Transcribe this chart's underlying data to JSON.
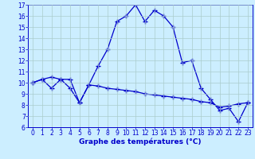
{
  "xlabel": "Graphe des températures (°C)",
  "background_color": "#cceeff",
  "grid_color": "#aacccc",
  "line_color": "#0000cc",
  "xlim": [
    -0.5,
    23.5
  ],
  "ylim": [
    6,
    17
  ],
  "xticks": [
    0,
    1,
    2,
    3,
    4,
    5,
    6,
    7,
    8,
    9,
    10,
    11,
    12,
    13,
    14,
    15,
    16,
    17,
    18,
    19,
    20,
    21,
    22,
    23
  ],
  "yticks": [
    6,
    7,
    8,
    9,
    10,
    11,
    12,
    13,
    14,
    15,
    16,
    17
  ],
  "line1_x": [
    0,
    1,
    2,
    3,
    4,
    5,
    6,
    7,
    8,
    9,
    10,
    11,
    12,
    13,
    14,
    15,
    16,
    17,
    18,
    19,
    20,
    21,
    22,
    23
  ],
  "line1_y": [
    10.0,
    10.3,
    10.5,
    10.3,
    9.5,
    8.2,
    9.8,
    11.5,
    13.0,
    15.5,
    16.0,
    17.0,
    15.5,
    16.5,
    16.0,
    15.0,
    11.8,
    12.0,
    9.5,
    8.5,
    7.5,
    7.7,
    6.5,
    8.2
  ],
  "line2_x": [
    0,
    1,
    2,
    3,
    4,
    5,
    6,
    7,
    8,
    9,
    10,
    11,
    12,
    13,
    14,
    15,
    16,
    17,
    18,
    19,
    20,
    21,
    22,
    23
  ],
  "line2_y": [
    10.0,
    10.3,
    9.5,
    10.3,
    10.3,
    8.2,
    9.8,
    9.7,
    9.5,
    9.4,
    9.3,
    9.2,
    9.0,
    8.9,
    8.8,
    8.7,
    8.6,
    8.5,
    8.3,
    8.2,
    7.8,
    7.9,
    8.1,
    8.2
  ],
  "tick_fontsize": 5.5,
  "xlabel_fontsize": 6.5,
  "marker_size": 4,
  "linewidth": 0.9
}
